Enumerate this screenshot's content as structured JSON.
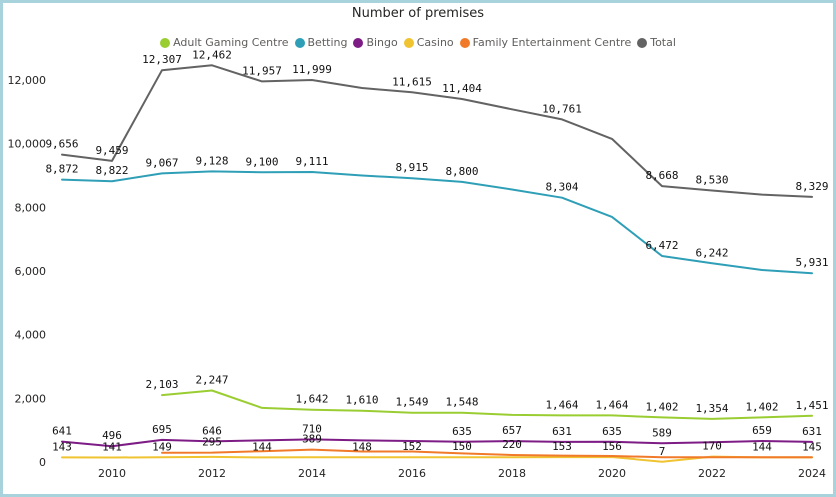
{
  "chart_data": {
    "type": "line",
    "title": "Number of premises",
    "xlabel": "",
    "ylabel": "",
    "x": [
      2009,
      2010,
      2011,
      2012,
      2013,
      2014,
      2015,
      2016,
      2017,
      2018,
      2019,
      2020,
      2021,
      2022,
      2023,
      2024
    ],
    "xticks": [
      "2010",
      "2012",
      "2014",
      "2016",
      "2018",
      "2020",
      "2022",
      "2024"
    ],
    "ylim": [
      0,
      12000
    ],
    "yticks": [
      "0",
      "2,000",
      "4,000",
      "6,000",
      "8,000",
      "10,000",
      "12,000"
    ],
    "legend_position": "top-center",
    "grid": false,
    "series": [
      {
        "name": "Adult Gaming Centre",
        "color": "#9ACD32",
        "values": [
          null,
          null,
          2103,
          2247,
          1700,
          1642,
          1610,
          1549,
          1548,
          1480,
          1464,
          1464,
          1402,
          1354,
          1402,
          1451
        ],
        "labels": [
          "",
          "",
          "2,103",
          "2,247",
          "",
          "1,642",
          "1,610",
          "1,549",
          "1,548",
          "",
          "1,464",
          "1,464",
          "1,402",
          "1,354",
          "1,402",
          "1,451"
        ]
      },
      {
        "name": "Betting",
        "color": "#2E9FB7",
        "values": [
          8872,
          8822,
          9067,
          9128,
          9100,
          9111,
          9000,
          8915,
          8800,
          8560,
          8304,
          7700,
          6472,
          6242,
          6030,
          5931
        ],
        "labels": [
          "8,872",
          "8,822",
          "9,067",
          "9,128",
          "9,100",
          "9,111",
          "",
          "8,915",
          "8,800",
          "",
          "8,304",
          "",
          "6,472",
          "6,242",
          "",
          "5,931"
        ]
      },
      {
        "name": "Bingo",
        "color": "#7E1C86",
        "values": [
          641,
          496,
          695,
          646,
          680,
          710,
          680,
          660,
          635,
          657,
          631,
          635,
          589,
          620,
          659,
          631
        ],
        "labels": [
          "641",
          "496",
          "695",
          "646",
          "",
          "710",
          "",
          "",
          "635",
          "657",
          "631",
          "635",
          "589",
          "",
          "659",
          "631"
        ]
      },
      {
        "name": "Casino",
        "color": "#F0C330",
        "values": [
          143,
          141,
          149,
          160,
          144,
          150,
          148,
          152,
          150,
          150,
          153,
          156,
          7,
          170,
          144,
          145
        ],
        "labels": [
          "143",
          "141",
          "149",
          "",
          "144",
          "",
          "148",
          "152",
          "150",
          "",
          "153",
          "156",
          "7",
          "170",
          "144",
          "145"
        ]
      },
      {
        "name": "Family Entertainment Centre",
        "color": "#F07A2A",
        "values": [
          null,
          null,
          290,
          295,
          340,
          389,
          330,
          330,
          270,
          220,
          200,
          190,
          150,
          150,
          150,
          150
        ],
        "labels": [
          "",
          "",
          "",
          "295",
          "",
          "389",
          "",
          "",
          "",
          "220",
          "",
          "",
          "",
          "",
          "",
          ""
        ]
      },
      {
        "name": "Total",
        "color": "#636363",
        "values": [
          9656,
          9459,
          12307,
          12462,
          11957,
          11999,
          11750,
          11615,
          11404,
          11080,
          10761,
          10150,
          8668,
          8530,
          8400,
          8329
        ],
        "labels": [
          "9,656",
          "9,459",
          "12,307",
          "12,462",
          "11,957",
          "11,999",
          "",
          "11,615",
          "11,404",
          "",
          "10,761",
          "",
          "8,668",
          "8,530",
          "",
          "8,329"
        ]
      }
    ]
  }
}
